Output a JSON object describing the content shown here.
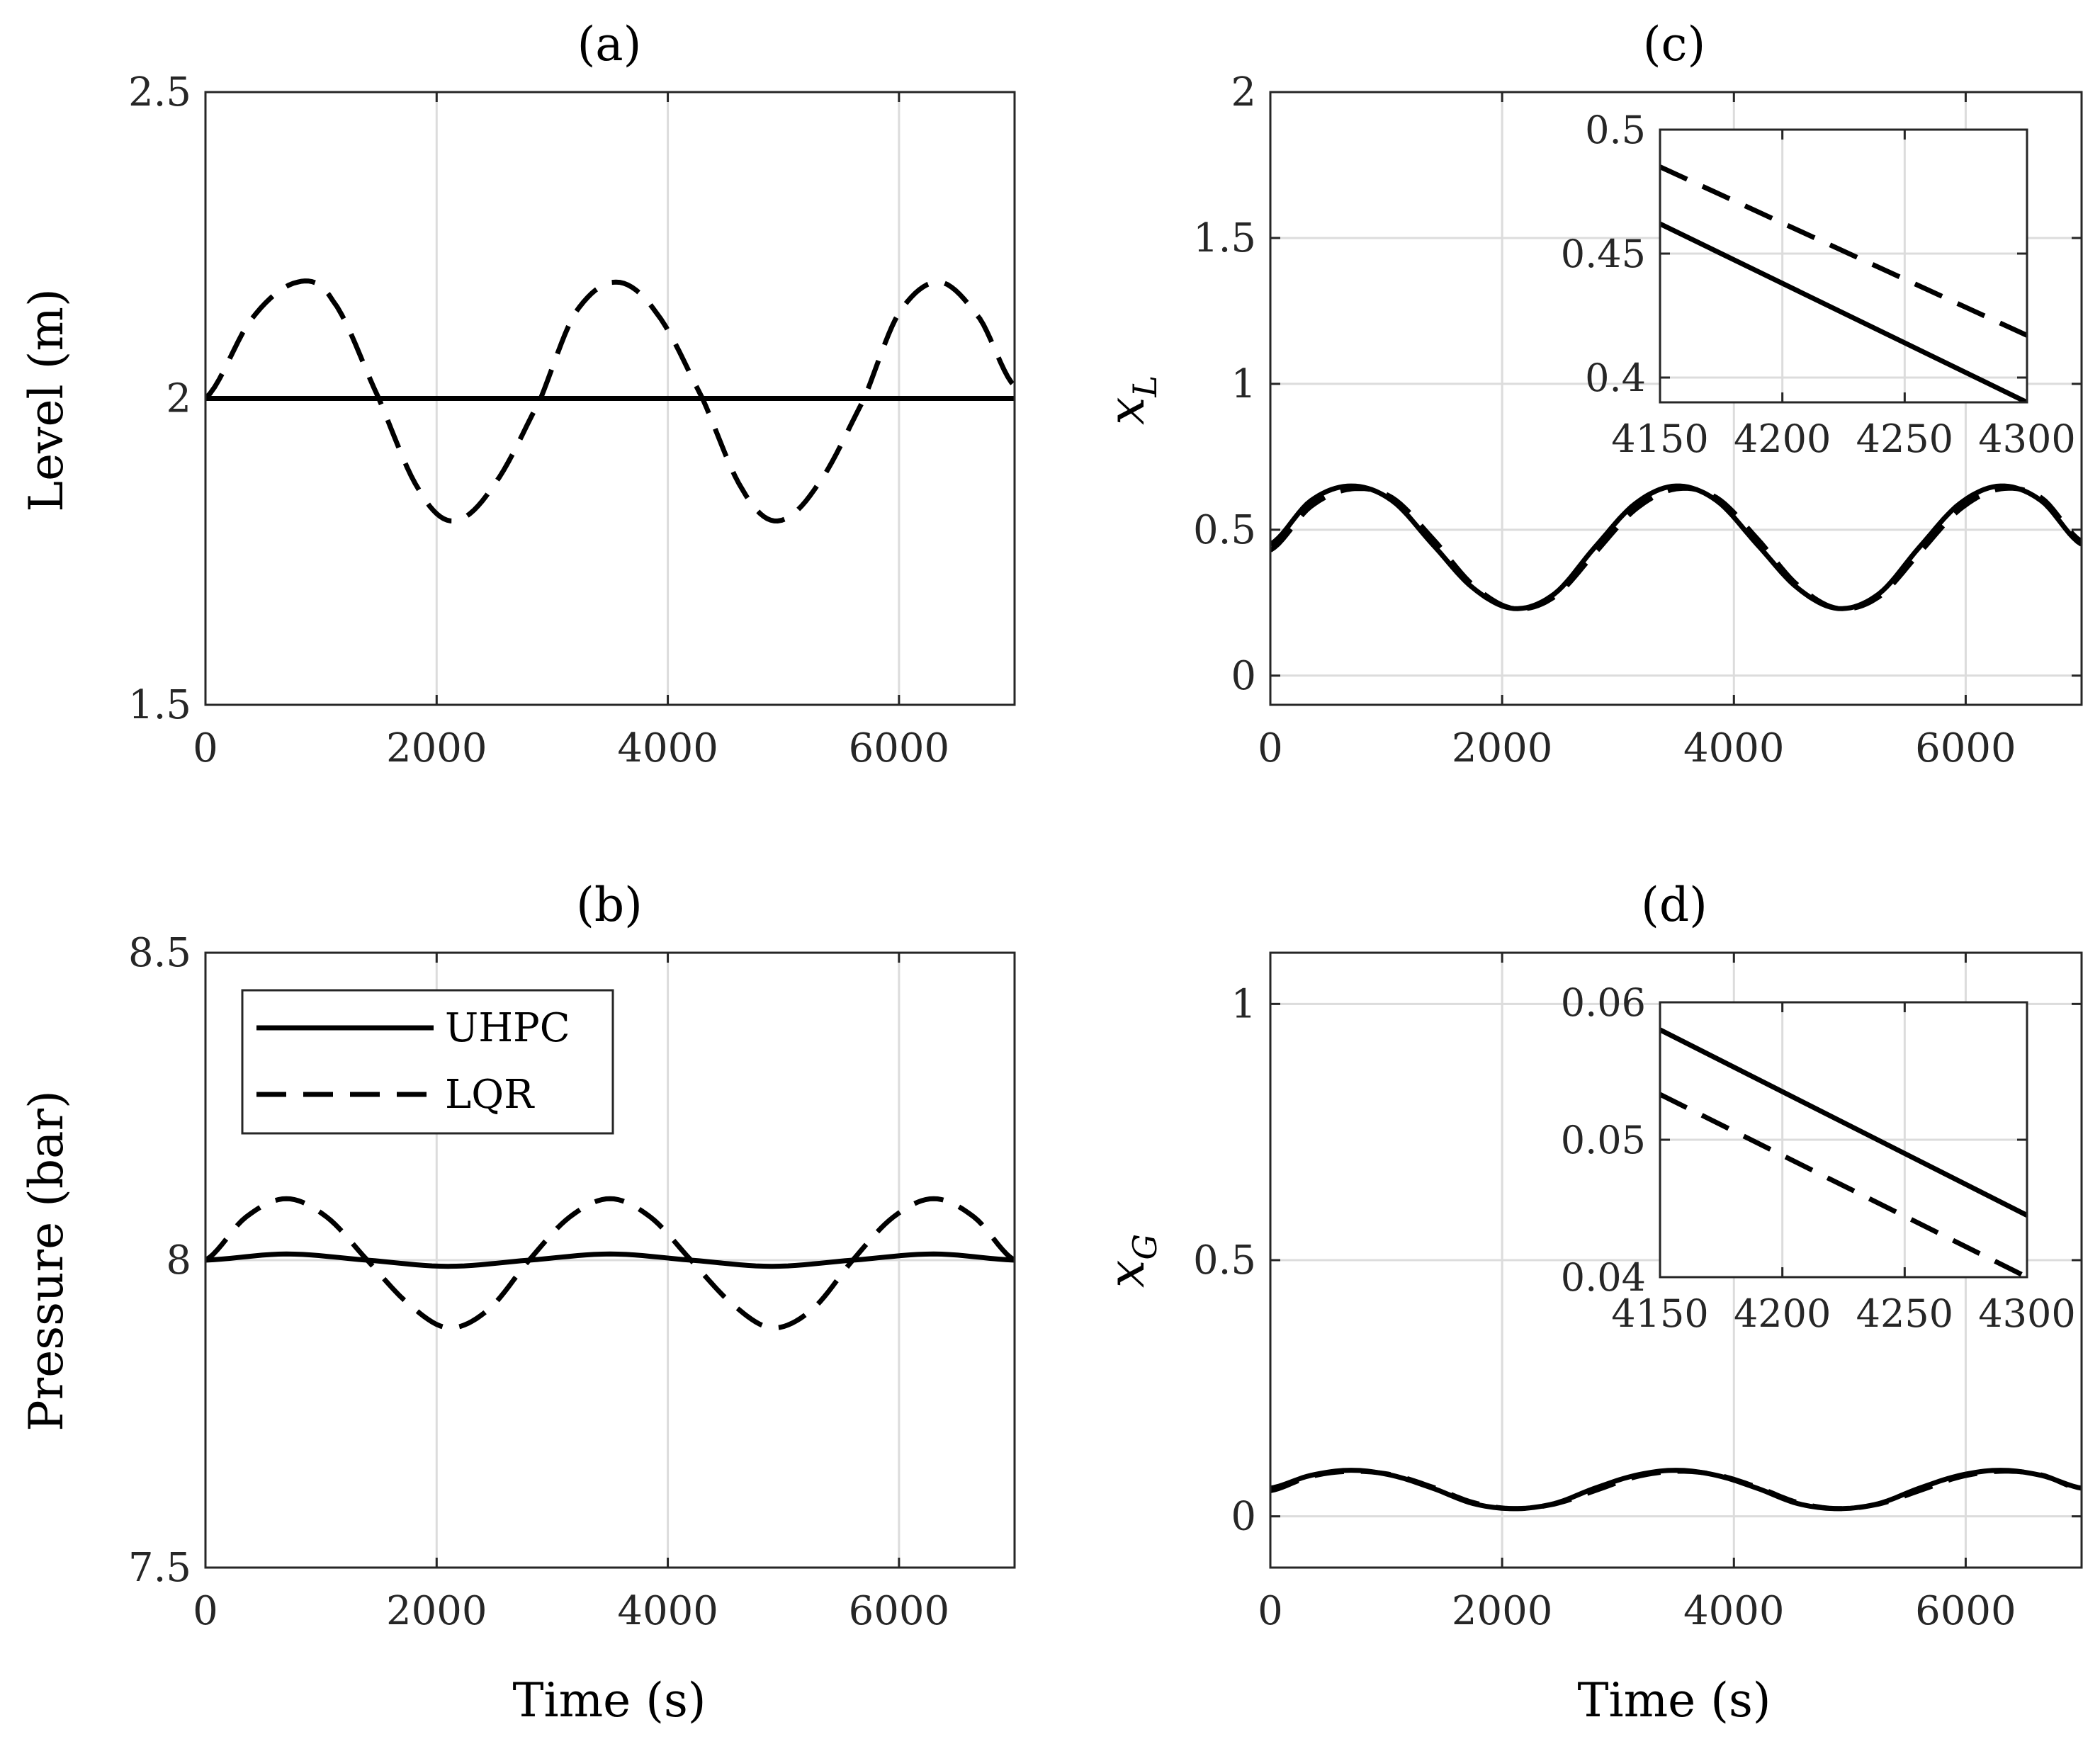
{
  "chart_data": [
    {
      "id": "a",
      "type": "line",
      "title": "(a)",
      "xlabel": "",
      "ylabel": "Level (m)",
      "xlim": [
        0,
        7000
      ],
      "ylim": [
        1.5,
        2.5
      ],
      "xticks": [
        0,
        2000,
        4000,
        6000
      ],
      "xtick_labels": [
        "0",
        "2000",
        "4000",
        "6000"
      ],
      "yticks": [
        1.5,
        2,
        2.5
      ],
      "ytick_labels": [
        "1.5",
        "2",
        "2.5"
      ],
      "grid": true,
      "series": [
        {
          "name": "UHPC",
          "style": "solid",
          "x": [
            0,
            1000,
            2000,
            3000,
            4000,
            5000,
            6000,
            7000
          ],
          "y": [
            2.0,
            2.0,
            2.0,
            2.0,
            2.0,
            2.0,
            2.0,
            2.0
          ]
        },
        {
          "name": "LQR",
          "style": "dashed",
          "x": [
            0,
            400,
            800,
            1100,
            1500,
            1850,
            2150,
            2500,
            2900,
            3200,
            3550,
            3900,
            4300,
            4650,
            4950,
            5300,
            5700,
            6000,
            6350,
            6700,
            7000
          ],
          "y": [
            2.0,
            2.13,
            2.19,
            2.16,
            2.0,
            1.85,
            1.8,
            1.86,
            2.0,
            2.14,
            2.19,
            2.14,
            2.0,
            1.85,
            1.8,
            1.86,
            2.0,
            2.14,
            2.19,
            2.13,
            2.02
          ]
        }
      ]
    },
    {
      "id": "b",
      "type": "line",
      "title": "(b)",
      "xlabel": "Time (s)",
      "ylabel": "Pressure (bar)",
      "xlim": [
        0,
        7000
      ],
      "ylim": [
        7.5,
        8.5
      ],
      "xticks": [
        0,
        2000,
        4000,
        6000
      ],
      "xtick_labels": [
        "0",
        "2000",
        "4000",
        "6000"
      ],
      "yticks": [
        7.5,
        8,
        8.5
      ],
      "ytick_labels": [
        "7.5",
        "8",
        "8.5"
      ],
      "grid": true,
      "legend": {
        "location": "top-left",
        "entries": [
          "UHPC",
          "LQR"
        ]
      },
      "series": [
        {
          "name": "UHPC",
          "style": "solid",
          "x": [
            0,
            700,
            1400,
            2100,
            2800,
            3500,
            4200,
            4900,
            5600,
            6300,
            7000
          ],
          "y": [
            8.0,
            8.01,
            8.0,
            7.99,
            8.0,
            8.01,
            8.0,
            7.99,
            8.0,
            8.01,
            8.0
          ]
        },
        {
          "name": "LQR",
          "style": "dashed",
          "x": [
            0,
            350,
            700,
            1050,
            1400,
            1750,
            2100,
            2450,
            2800,
            3150,
            3500,
            3850,
            4200,
            4550,
            4900,
            5250,
            5600,
            5950,
            6300,
            6650,
            7000
          ],
          "y": [
            8.0,
            8.07,
            8.1,
            8.07,
            8.0,
            7.93,
            7.89,
            7.92,
            8.0,
            8.07,
            8.1,
            8.07,
            8.0,
            7.93,
            7.89,
            7.92,
            8.0,
            8.07,
            8.1,
            8.07,
            8.0
          ]
        }
      ]
    },
    {
      "id": "c",
      "type": "line",
      "title": "(c)",
      "xlabel": "",
      "ylabel": "x",
      "ylabel_sub": "L",
      "xlim": [
        0,
        7000
      ],
      "ylim": [
        -0.1,
        2
      ],
      "xticks": [
        0,
        2000,
        4000,
        6000
      ],
      "xtick_labels": [
        "0",
        "2000",
        "4000",
        "6000"
      ],
      "yticks": [
        0,
        0.5,
        1,
        1.5,
        2
      ],
      "ytick_labels": [
        "0",
        "0.5",
        "1",
        "1.5",
        "2"
      ],
      "grid": true,
      "series": [
        {
          "name": "UHPC",
          "style": "solid",
          "x": [
            0,
            350,
            700,
            1050,
            1400,
            1750,
            2100,
            2450,
            2800,
            3150,
            3500,
            3850,
            4200,
            4550,
            4900,
            5250,
            5600,
            5950,
            6300,
            6650,
            7000
          ],
          "y": [
            0.45,
            0.6,
            0.65,
            0.6,
            0.45,
            0.3,
            0.23,
            0.28,
            0.44,
            0.59,
            0.65,
            0.6,
            0.45,
            0.3,
            0.23,
            0.28,
            0.44,
            0.59,
            0.65,
            0.6,
            0.45
          ]
        },
        {
          "name": "LQR",
          "style": "dashed",
          "x": [
            0,
            350,
            700,
            1050,
            1400,
            1750,
            2100,
            2450,
            2800,
            3150,
            3500,
            3850,
            4200,
            4550,
            4900,
            5250,
            5600,
            5950,
            6300,
            6650,
            7000
          ],
          "y": [
            0.43,
            0.58,
            0.64,
            0.61,
            0.47,
            0.31,
            0.23,
            0.27,
            0.42,
            0.57,
            0.64,
            0.61,
            0.47,
            0.31,
            0.23,
            0.27,
            0.42,
            0.57,
            0.64,
            0.61,
            0.46
          ]
        }
      ],
      "inset": {
        "xlim": [
          4150,
          4300
        ],
        "ylim": [
          0.39,
          0.5
        ],
        "xticks": [
          4150,
          4200,
          4250,
          4300
        ],
        "xtick_labels": [
          "4150",
          "4200",
          "4250",
          "4300"
        ],
        "yticks": [
          0.4,
          0.45,
          0.5
        ],
        "ytick_labels": [
          "0.4",
          "0.45",
          "0.5"
        ],
        "series": [
          {
            "name": "UHPC",
            "style": "solid",
            "x": [
              4150,
              4300
            ],
            "y": [
              0.462,
              0.39
            ]
          },
          {
            "name": "LQR",
            "style": "dashed",
            "x": [
              4150,
              4300
            ],
            "y": [
              0.485,
              0.417
            ]
          }
        ]
      }
    },
    {
      "id": "d",
      "type": "line",
      "title": "(d)",
      "xlabel": "Time (s)",
      "ylabel": "x",
      "ylabel_sub": "G",
      "xlim": [
        0,
        7000
      ],
      "ylim": [
        -0.1,
        1.1
      ],
      "xticks": [
        0,
        2000,
        4000,
        6000
      ],
      "xtick_labels": [
        "0",
        "2000",
        "4000",
        "6000"
      ],
      "yticks": [
        0,
        0.5,
        1
      ],
      "ytick_labels": [
        "0",
        "0.5",
        "1"
      ],
      "grid": true,
      "series": [
        {
          "name": "UHPC",
          "style": "solid",
          "x": [
            0,
            350,
            700,
            1050,
            1400,
            1750,
            2100,
            2450,
            2800,
            3150,
            3500,
            3850,
            4200,
            4550,
            4900,
            5250,
            5600,
            5950,
            6300,
            6650,
            7000
          ],
          "y": [
            0.055,
            0.08,
            0.09,
            0.08,
            0.055,
            0.025,
            0.015,
            0.025,
            0.055,
            0.08,
            0.09,
            0.08,
            0.055,
            0.025,
            0.015,
            0.025,
            0.055,
            0.08,
            0.09,
            0.08,
            0.055
          ]
        },
        {
          "name": "LQR",
          "style": "dashed",
          "x": [
            0,
            350,
            700,
            1050,
            1400,
            1750,
            2100,
            2450,
            2800,
            3150,
            3500,
            3850,
            4200,
            4550,
            4900,
            5250,
            5600,
            5950,
            6300,
            6650,
            7000
          ],
          "y": [
            0.05,
            0.078,
            0.088,
            0.081,
            0.057,
            0.027,
            0.015,
            0.024,
            0.05,
            0.077,
            0.088,
            0.081,
            0.057,
            0.027,
            0.015,
            0.024,
            0.05,
            0.077,
            0.088,
            0.081,
            0.052
          ]
        }
      ],
      "inset": {
        "xlim": [
          4150,
          4300
        ],
        "ylim": [
          0.04,
          0.06
        ],
        "xticks": [
          4150,
          4200,
          4250,
          4300
        ],
        "xtick_labels": [
          "4150",
          "4200",
          "4250",
          "4300"
        ],
        "yticks": [
          0.04,
          0.05,
          0.06
        ],
        "ytick_labels": [
          "0.04",
          "0.05",
          "0.06"
        ],
        "series": [
          {
            "name": "UHPC",
            "style": "solid",
            "x": [
              4150,
              4300
            ],
            "y": [
              0.058,
              0.0445
            ]
          },
          {
            "name": "LQR",
            "style": "dashed",
            "x": [
              4150,
              4300
            ],
            "y": [
              0.0533,
              0.04
            ]
          }
        ]
      }
    }
  ]
}
